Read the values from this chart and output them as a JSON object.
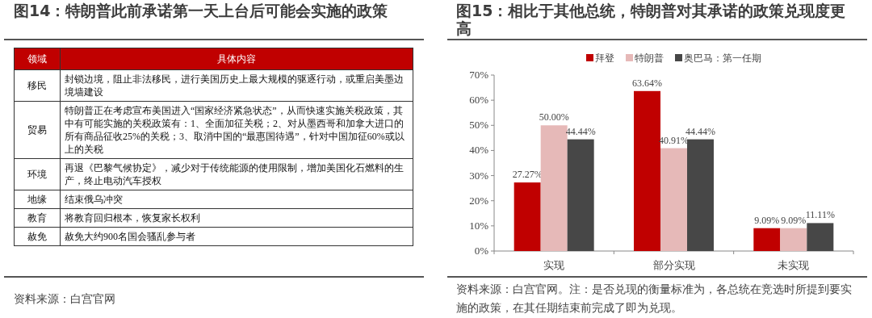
{
  "chart_data": [
    {
      "type": "other",
      "title": "图14：特朗普此前承诺第一天上台后可能会实施的政策",
      "annotations": [
        "领域",
        "具体内容",
        "移民",
        "封锁边境，阻止非法移民，进行美国历史上最大规模的驱逐行动，或重启美墨边境墙建设",
        "贸易",
        "特朗普正在考虑宣布美国进入“国家经济紧急状态”，从而快速实施关税政策，其中有可能实施的关税政策有：1、全面加征关税；2、对从墨西哥和加拿大进口的所有商品征收25%的关税；3、取消中国的“最惠国待遇”，针对中国加征60%或以上的关税",
        "环境",
        "再退《巴黎气候协定》，减少对于传统能源的使用限制，增加美国化石燃料的生产，终止电动汽车授权",
        "地缘",
        "结束俄乌冲突",
        "教育",
        "将教育回归根本，恢复家长权利",
        "赦免",
        "赦免大约900名国会骚乱参与者",
        "资料来源：白宫官网"
      ]
    },
    {
      "type": "bar",
      "title": "图15：相比于其他总统，特朗普对其承诺的政策兑现度更高",
      "categories": [
        "实现",
        "部分实现",
        "未实现"
      ],
      "series": [
        {
          "name": "拜登",
          "color": "#c00000",
          "values": [
            27.27,
            63.64,
            9.09
          ],
          "value_labels": [
            "27.27%",
            "63.64%",
            "9.09%"
          ]
        },
        {
          "name": "特朗普",
          "color": "#e6b9b8",
          "values": [
            50.0,
            40.91,
            9.09
          ],
          "value_labels": [
            "50.00%",
            "40.91%",
            "9.09%"
          ]
        },
        {
          "name": "奥巴马：第一任期",
          "color": "#474747",
          "values": [
            44.44,
            44.44,
            11.11
          ],
          "value_labels": [
            "44.44%",
            "44.44%",
            "11.11%"
          ]
        }
      ],
      "ylim": [
        0,
        70
      ],
      "yticks": [
        {
          "value": 0,
          "label": "0%"
        },
        {
          "value": 10,
          "label": "10%"
        },
        {
          "value": 20,
          "label": "20%"
        },
        {
          "value": 30,
          "label": "30%"
        },
        {
          "value": 40,
          "label": "40%"
        },
        {
          "value": 50,
          "label": "50%"
        },
        {
          "value": 60,
          "label": "60%"
        },
        {
          "value": 70,
          "label": "70%"
        }
      ],
      "legend": "top",
      "annotations": [
        "资料来源：白宫官网。注：是否兑现的衡量标准为，各总统在竞选时所提到要实施的政策，在其任期结束前完成了即为兑现。"
      ]
    }
  ]
}
